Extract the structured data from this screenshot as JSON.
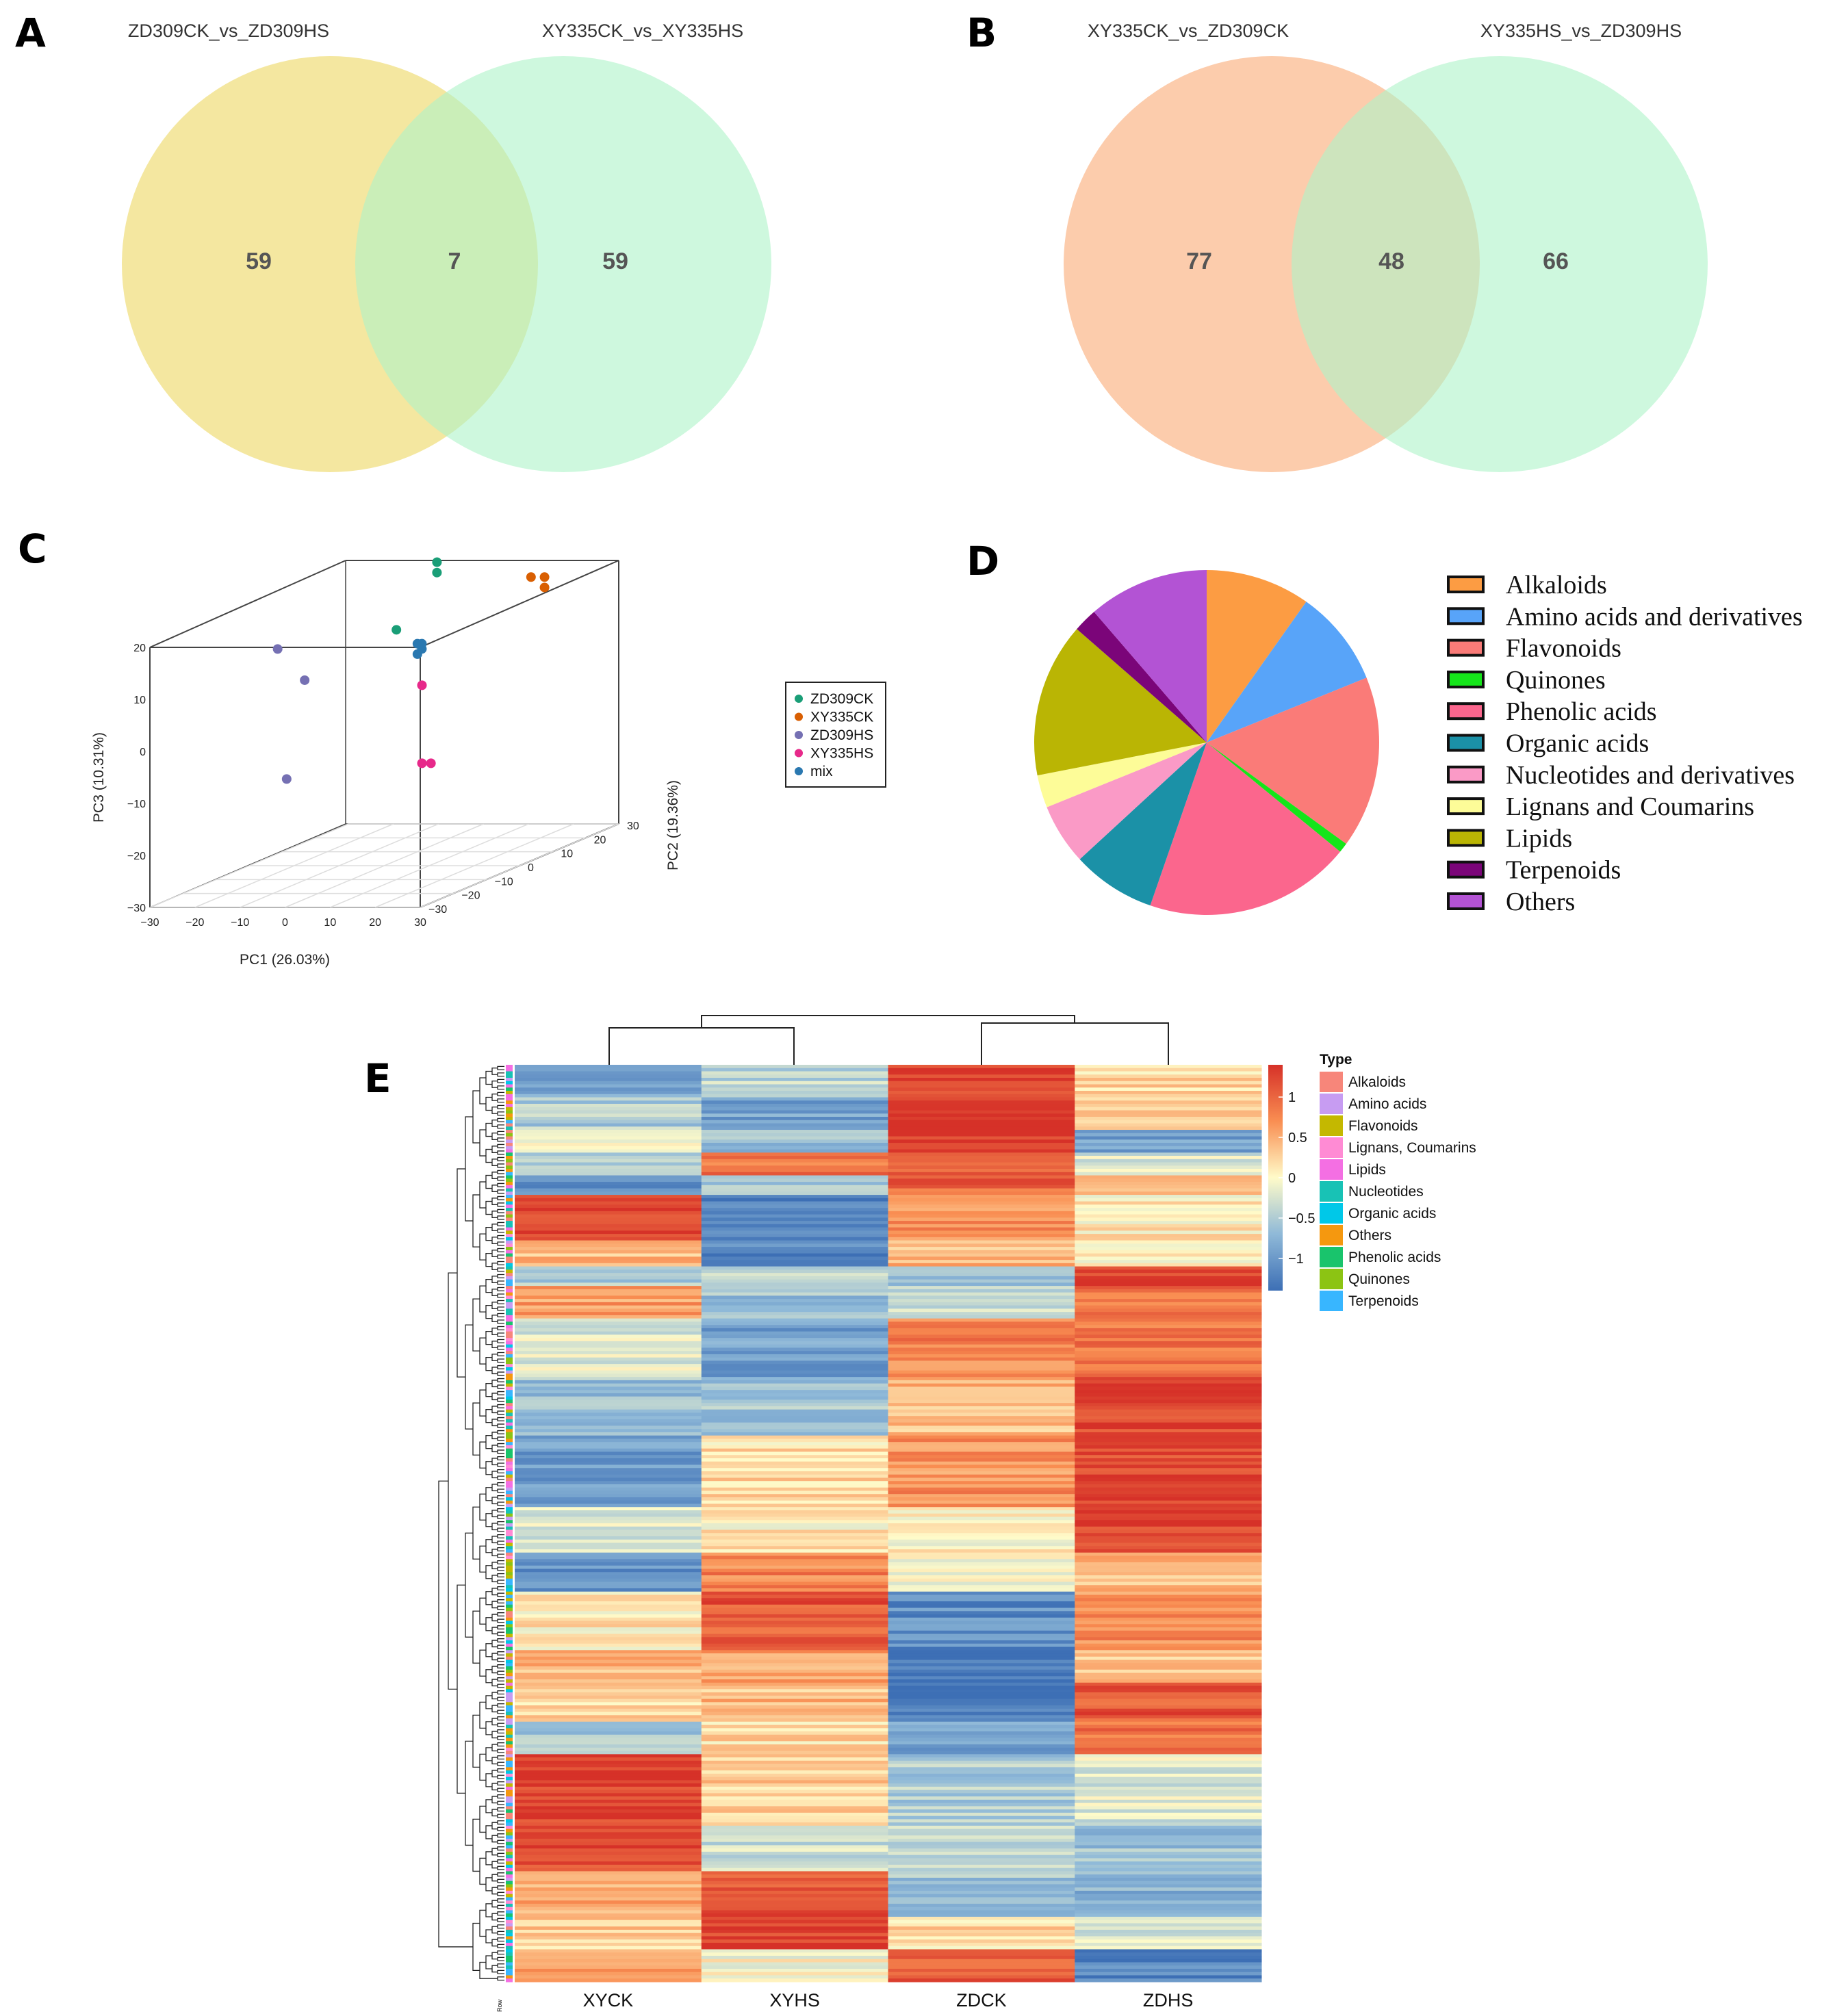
{
  "chart_data": [
    {
      "panel": "A",
      "type": "venn",
      "sets": [
        "ZD309CK_vs_ZD309HS",
        "XY335CK_vs_XY335HS"
      ],
      "colors": [
        "#f2e38f",
        "#aef3c8"
      ],
      "only_left": 59,
      "intersection": 7,
      "only_right": 59
    },
    {
      "panel": "B",
      "type": "venn",
      "sets": [
        "XY335CK_vs_ZD309CK",
        "XY335HS_vs_ZD309HS"
      ],
      "colors": [
        "#fcc39d",
        "#aef3c8"
      ],
      "only_left": 77,
      "intersection": 48,
      "only_right": 66
    },
    {
      "panel": "C",
      "type": "scatter",
      "subtype": "pca-3d",
      "xlabel": "PC1 (26.03%)",
      "ylabel": "PC2 (19.36%)",
      "zlabel": "PC3 (10.31%)",
      "xlim": [
        -30,
        30
      ],
      "ylim": [
        -30,
        30
      ],
      "zlim": [
        -30,
        20
      ],
      "xticks": [
        "−30",
        "−20",
        "−10",
        "0",
        "10",
        "20",
        "30"
      ],
      "yticks": [
        "−30",
        "−20",
        "−10",
        "0",
        "10",
        "20",
        "30"
      ],
      "zticks": [
        "20",
        "10",
        "0",
        "−10",
        "−20",
        "−30"
      ],
      "series": [
        {
          "name": "ZD309CK",
          "color": "#1a9e77",
          "points": [
            [
              -3,
              20,
              23
            ],
            [
              -3,
              20,
              21
            ],
            [
              -12,
              20,
              10
            ]
          ]
        },
        {
          "name": "XY335CK",
          "color": "#d95f02",
          "points": [
            [
              12,
              28,
              18
            ],
            [
              15,
              28,
              18
            ],
            [
              15,
              28,
              16
            ]
          ]
        },
        {
          "name": "ZD309HS",
          "color": "#7570b3",
          "points": [
            [
              -20,
              -5,
              13
            ],
            [
              -14,
              -5,
              7
            ],
            [
              -18,
              -5,
              -12
            ]
          ]
        },
        {
          "name": "XY335HS",
          "color": "#e7298a",
          "points": [
            [
              -10,
              25,
              -2
            ],
            [
              -10,
              25,
              -17
            ],
            [
              -8,
              25,
              -17
            ]
          ]
        },
        {
          "name": "mix",
          "color": "#2a78b0",
          "points": [
            [
              0,
              10,
              10
            ],
            [
              1,
              10,
              10
            ],
            [
              0,
              10,
              8
            ],
            [
              1,
              10,
              9
            ]
          ]
        }
      ]
    },
    {
      "panel": "D",
      "type": "pie",
      "labels": [
        "Alkaloids",
        "Amino acids and derivatives",
        "Flavonoids",
        "Quinones",
        "Phenolic acids",
        "Organic acids",
        "Nucleotides and derivatives",
        "Lignans and Coumarins",
        "Lipids",
        "Terpenoids",
        "Others"
      ],
      "values": [
        9.6,
        8.9,
        15.8,
        0.9,
        19.0,
        7.7,
        5.6,
        3.0,
        14.2,
        2.2,
        11.1
      ],
      "colors": [
        "#fc9c43",
        "#58a4f9",
        "#fa7b78",
        "#15e51a",
        "#fb668d",
        "#1b91a7",
        "#fa9ac6",
        "#fdfc98",
        "#bab504",
        "#7b0579",
        "#b353d4"
      ]
    },
    {
      "panel": "E",
      "type": "heatmap",
      "columns": [
        "XYCK",
        "XYHS",
        "ZDCK",
        "ZDHS"
      ],
      "colorbar": {
        "ticks": [
          "1",
          "0.5",
          "0",
          "−0.5",
          "−1"
        ],
        "range": [
          -1.4,
          1.4
        ],
        "low": "#3d6fb5",
        "mid": "#fffbc9",
        "high": "#d63128"
      },
      "type_legend_title": "Type",
      "types": [
        "Alkaloids",
        "Amino acids",
        "Flavonoids",
        "Lignans, Coumarins",
        "Lipids",
        "Nucleotides",
        "Organic acids",
        "Others",
        "Phenolic acids",
        "Quinones",
        "Terpenoids"
      ],
      "type_colors": [
        "#f7867a",
        "#c79cf2",
        "#c4b800",
        "#ff8bd4",
        "#f46fe3",
        "#18c2b5",
        "#00c8e8",
        "#f5980f",
        "#19c46c",
        "#8cc413",
        "#38b6ff"
      ],
      "row_label": "Row",
      "blocks": [
        {
          "rows": 10,
          "values": [
            -0.9,
            -0.4,
            1.3,
            0.2
          ]
        },
        {
          "rows": 10,
          "values": [
            -0.5,
            -0.9,
            1.4,
            0.3
          ]
        },
        {
          "rows": 7,
          "values": [
            0.1,
            -0.6,
            1.3,
            -0.9
          ]
        },
        {
          "rows": 7,
          "values": [
            -0.4,
            0.9,
            1.1,
            -0.2
          ]
        },
        {
          "rows": 6,
          "values": [
            -1.2,
            -0.5,
            1.0,
            0.4
          ]
        },
        {
          "rows": 14,
          "values": [
            1.3,
            -1.2,
            0.7,
            0.1
          ]
        },
        {
          "rows": 8,
          "values": [
            0.4,
            -1.2,
            0.4,
            0.0
          ]
        },
        {
          "rows": 6,
          "values": [
            -0.5,
            -0.3,
            -0.5,
            1.3
          ]
        },
        {
          "rows": 10,
          "values": [
            0.6,
            -0.6,
            -0.3,
            0.9
          ]
        },
        {
          "rows": 18,
          "values": [
            -0.2,
            -0.9,
            0.8,
            0.9
          ]
        },
        {
          "rows": 18,
          "values": [
            -0.6,
            -0.6,
            0.4,
            1.2
          ]
        },
        {
          "rows": 22,
          "values": [
            -1.0,
            0.2,
            0.7,
            1.2
          ]
        },
        {
          "rows": 14,
          "values": [
            -0.2,
            0.1,
            0.0,
            1.3
          ]
        },
        {
          "rows": 12,
          "values": [
            -1.1,
            0.8,
            0.0,
            0.4
          ]
        },
        {
          "rows": 18,
          "values": [
            0.1,
            1.1,
            -1.1,
            0.7
          ]
        },
        {
          "rows": 10,
          "values": [
            0.4,
            0.6,
            -1.3,
            0.3
          ]
        },
        {
          "rows": 12,
          "values": [
            0.2,
            0.4,
            -1.2,
            1.1
          ]
        },
        {
          "rows": 10,
          "values": [
            -0.5,
            0.2,
            -0.9,
            0.9
          ]
        },
        {
          "rows": 22,
          "values": [
            1.3,
            0.3,
            -0.5,
            -0.2
          ]
        },
        {
          "rows": 14,
          "values": [
            1.2,
            -0.3,
            -0.3,
            -0.6
          ]
        },
        {
          "rows": 14,
          "values": [
            0.5,
            1.1,
            -0.6,
            -0.8
          ]
        },
        {
          "rows": 10,
          "values": [
            0.3,
            1.3,
            0.2,
            -0.2
          ]
        },
        {
          "rows": 10,
          "values": [
            0.6,
            0.0,
            1.1,
            -1.2
          ]
        }
      ]
    }
  ],
  "panels": {
    "A": "A",
    "B": "B",
    "C": "C",
    "D": "D",
    "E": "E"
  }
}
